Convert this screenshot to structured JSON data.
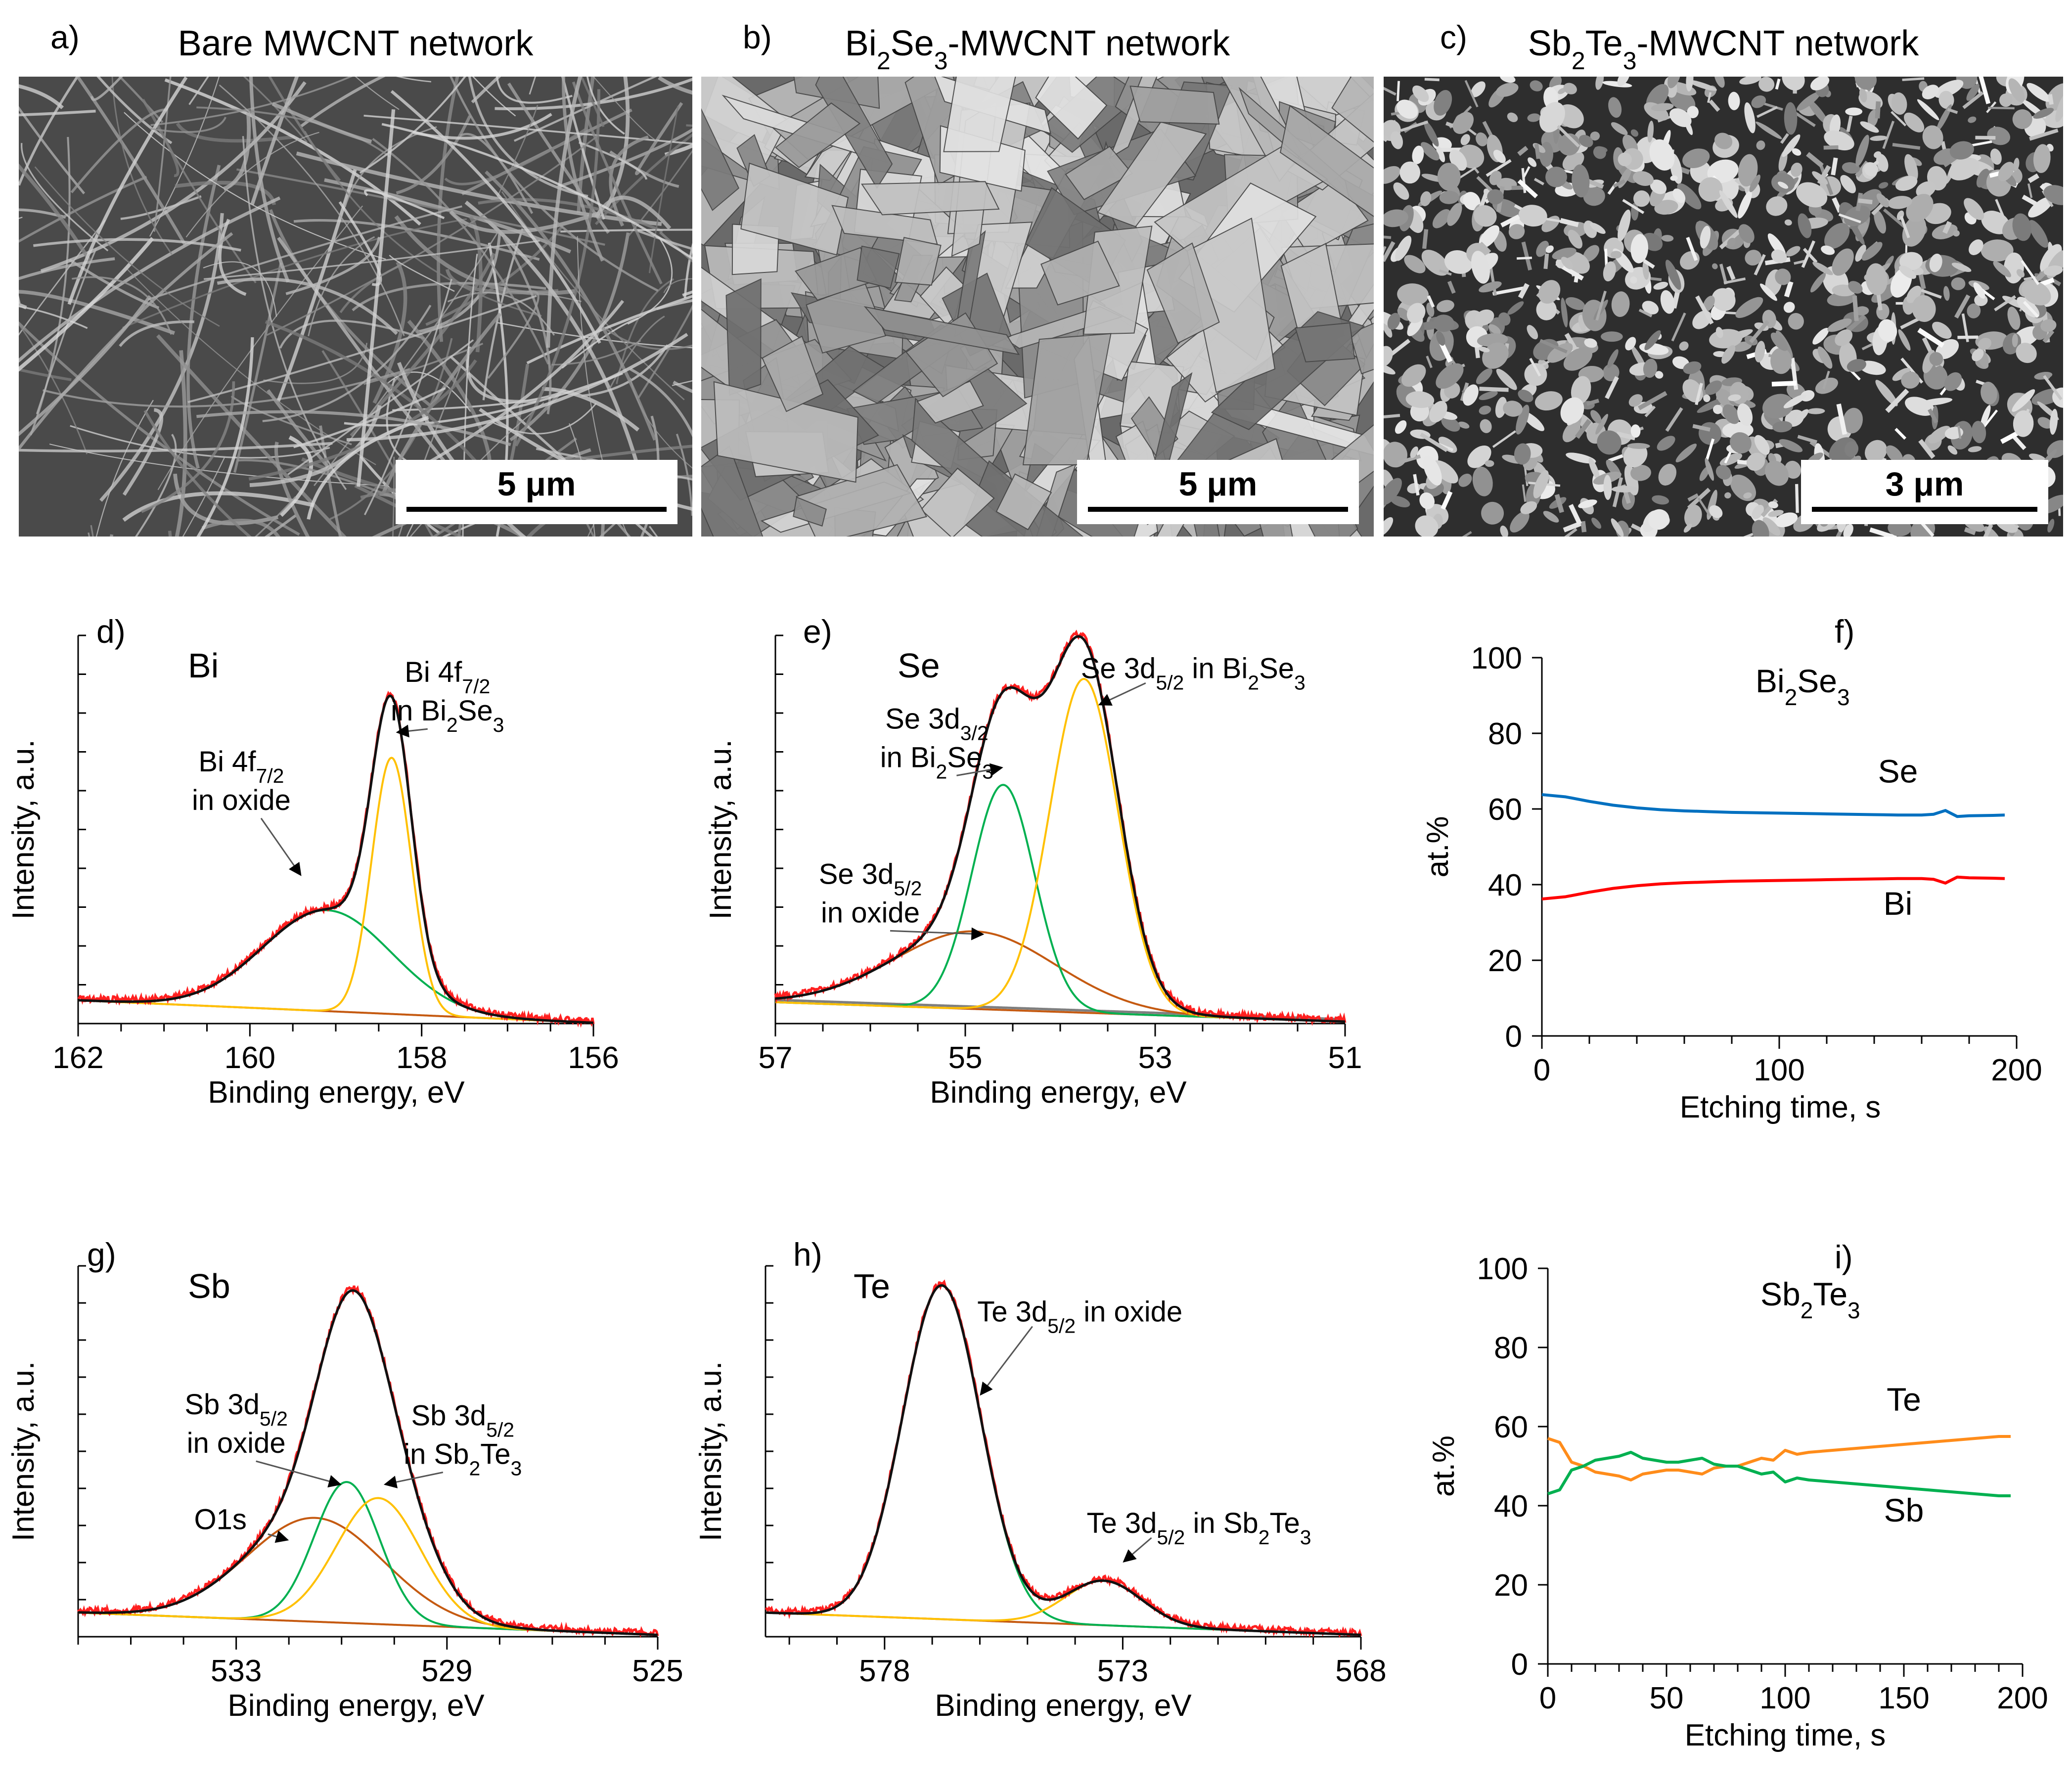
{
  "colors": {
    "measured": "#ff2020",
    "fit": "#111111",
    "green": "#00b050",
    "yellow": "#ffc000",
    "brown": "#c55a11",
    "gray": "#7f7f7f",
    "blue": "#0070c0",
    "red": "#ff0000",
    "orange": "#ff8c1a",
    "sem_bg": "#4a4a4a"
  },
  "sem": [
    {
      "letter": "a)",
      "title_pre": "Bare MWCNT network",
      "formula": [],
      "title_post": "",
      "scale": "5 μm",
      "texture": "fibers"
    },
    {
      "letter": "b)",
      "title_pre": "",
      "formula": [
        [
          "Bi",
          "2"
        ],
        [
          "Se",
          "3"
        ]
      ],
      "title_post": "-MWCNT network",
      "scale": "5 μm",
      "texture": "flakes"
    },
    {
      "letter": "c)",
      "title_pre": "",
      "formula": [
        [
          "Sb",
          "2"
        ],
        [
          "Te",
          "3"
        ]
      ],
      "title_post": "-MWCNT network",
      "scale": "3 μm",
      "texture": "grains"
    }
  ],
  "chart_data": [
    {
      "id": "d",
      "letter": "d)",
      "type": "line",
      "element": "Bi",
      "xlabel": "Binding energy, eV",
      "ylabel": "Intensity, a.u.",
      "xlim": [
        162,
        156
      ],
      "ylim": [
        0,
        100
      ],
      "xticks": [
        162,
        160,
        158,
        156
      ],
      "minor_step": 0.5,
      "yminor_step": 10,
      "background": [
        [
          162,
          6.0
        ],
        [
          156,
          0.2
        ]
      ],
      "components": [
        {
          "name": "Bi 4f7/2 in oxide",
          "color": "green",
          "center": 159.1,
          "sigma": 0.75,
          "amplitude": 26
        },
        {
          "name": "Bi 4f7/2 in Bi2Se3",
          "color": "yellow",
          "center": 158.35,
          "sigma": 0.23,
          "amplitude": 66
        }
      ],
      "annotations": [
        {
          "lines": [
            [
              [
                "Bi 4f",
                ""
              ],
              [
                "7/2",
                "sub"
              ]
            ],
            [
              [
                "in oxide",
                ""
              ]
            ]
          ],
          "label_x": 160.1,
          "label_y": 65,
          "arrow_to": [
            159.4,
            38
          ]
        },
        {
          "lines": [
            [
              [
                "Bi 4f",
                ""
              ],
              [
                "7/2",
                "sub"
              ]
            ],
            [
              [
                "in Bi",
                ""
              ],
              [
                "2",
                "sub"
              ],
              [
                "Se",
                ""
              ],
              [
                "3",
                "sub"
              ]
            ]
          ],
          "label_x": 157.7,
          "label_y": 88,
          "arrow_to": [
            158.3,
            75
          ]
        }
      ]
    },
    {
      "id": "e",
      "letter": "e)",
      "type": "line",
      "element": "Se",
      "xlabel": "Binding energy, eV",
      "ylabel": "Intensity, a.u.",
      "xlim": [
        57,
        51
      ],
      "ylim": [
        0,
        100
      ],
      "xticks": [
        57,
        55,
        53,
        51
      ],
      "minor_step": 0.5,
      "yminor_step": 10,
      "background": [
        [
          57,
          5.5
        ],
        [
          51,
          0.5
        ]
      ],
      "grey_line": true,
      "components": [
        {
          "name": "Se 3d5/2 in oxide",
          "color": "brown",
          "center": 54.9,
          "sigma": 0.85,
          "amplitude": 20
        },
        {
          "name": "Se 3d3/2 in Bi2Se3",
          "color": "green",
          "center": 54.6,
          "sigma": 0.33,
          "amplitude": 58
        },
        {
          "name": "Se 3d5/2 in Bi2Se3",
          "color": "yellow",
          "center": 53.75,
          "sigma": 0.36,
          "amplitude": 86
        }
      ],
      "annotations": [
        {
          "lines": [
            [
              [
                "Se 3d",
                ""
              ],
              [
                "5/2",
                "sub"
              ]
            ],
            [
              [
                "in oxide",
                ""
              ]
            ]
          ],
          "label_x": 56.0,
          "label_y": 36,
          "arrow_to": [
            54.8,
            23
          ]
        },
        {
          "lines": [
            [
              [
                "Se 3d",
                ""
              ],
              [
                "3/2",
                "sub"
              ]
            ],
            [
              [
                "in Bi",
                ""
              ],
              [
                "2",
                "sub"
              ],
              [
                "Se",
                ""
              ],
              [
                "3",
                "sub"
              ]
            ]
          ],
          "label_x": 55.3,
          "label_y": 76,
          "arrow_to": [
            54.6,
            66
          ]
        },
        {
          "lines": [
            [
              [
                "Se 3d",
                ""
              ],
              [
                "5/2",
                "sub"
              ],
              [
                " in Bi",
                ""
              ],
              [
                "2",
                "sub"
              ],
              [
                "Se",
                ""
              ],
              [
                "3",
                "sub"
              ]
            ]
          ],
          "label_x": 52.6,
          "label_y": 89,
          "arrow_to": [
            53.6,
            82
          ]
        }
      ]
    },
    {
      "id": "f",
      "letter": "f)",
      "type": "line",
      "compound": [
        [
          "Bi",
          "2"
        ],
        [
          "Se",
          "3"
        ]
      ],
      "xlabel": "Etching time, s",
      "ylabel": "at.%",
      "xlim": [
        0,
        200
      ],
      "ylim": [
        0,
        100
      ],
      "xticks": [
        0,
        100,
        200
      ],
      "yticks": [
        0,
        20,
        40,
        60,
        80,
        100
      ],
      "minor_step": 20,
      "series": [
        {
          "name": "Se",
          "color": "blue",
          "x": [
            0,
            10,
            20,
            30,
            40,
            50,
            60,
            70,
            80,
            90,
            100,
            110,
            120,
            130,
            140,
            150,
            160,
            165,
            170,
            175,
            180,
            190,
            195
          ],
          "y": [
            63.8,
            63.2,
            62.0,
            61.0,
            60.3,
            59.8,
            59.5,
            59.3,
            59.1,
            59.0,
            58.9,
            58.8,
            58.7,
            58.6,
            58.5,
            58.4,
            58.4,
            58.6,
            59.6,
            58.0,
            58.2,
            58.3,
            58.4
          ],
          "label_x": 150,
          "label_y": 67
        },
        {
          "name": "Bi",
          "color": "red",
          "x": [
            0,
            10,
            20,
            30,
            40,
            50,
            60,
            70,
            80,
            90,
            100,
            110,
            120,
            130,
            140,
            150,
            160,
            165,
            170,
            175,
            180,
            190,
            195
          ],
          "y": [
            36.2,
            36.8,
            38.0,
            39.0,
            39.7,
            40.2,
            40.5,
            40.7,
            40.9,
            41.0,
            41.1,
            41.2,
            41.3,
            41.4,
            41.5,
            41.6,
            41.6,
            41.4,
            40.4,
            42.0,
            41.8,
            41.7,
            41.6
          ],
          "label_x": 150,
          "label_y": 32
        }
      ]
    },
    {
      "id": "g",
      "letter": "g)",
      "type": "line",
      "element": "Sb",
      "xlabel": "Binding energy, eV",
      "ylabel": "Intensity, a.u.",
      "xlim": [
        536,
        525
      ],
      "ylim": [
        0,
        100
      ],
      "xticks": [
        533,
        529,
        525
      ],
      "minor_step": 1,
      "yminor_step": 10,
      "background": [
        [
          536,
          6.5
        ],
        [
          525,
          0.5
        ]
      ],
      "components": [
        {
          "name": "O1s",
          "color": "brown",
          "center": 531.5,
          "sigma": 1.3,
          "amplitude": 28
        },
        {
          "name": "Sb 3d5/2 in oxide",
          "color": "green",
          "center": 530.9,
          "sigma": 0.62,
          "amplitude": 38
        },
        {
          "name": "Sb 3d5/2 in Sb2Te3",
          "color": "yellow",
          "center": 530.3,
          "sigma": 0.8,
          "amplitude": 34
        }
      ],
      "annotations": [
        {
          "lines": [
            [
              [
                "O1s",
                ""
              ]
            ]
          ],
          "label_x": 533.3,
          "label_y": 29,
          "arrow_to": [
            532.0,
            26
          ]
        },
        {
          "lines": [
            [
              [
                "Sb 3d",
                ""
              ],
              [
                "5/2",
                "sub"
              ]
            ],
            [
              [
                "in oxide",
                ""
              ]
            ]
          ],
          "label_x": 533.0,
          "label_y": 60,
          "arrow_to": [
            531.0,
            41
          ]
        },
        {
          "lines": [
            [
              [
                "Sb 3d",
                ""
              ],
              [
                "5/2",
                "sub"
              ]
            ],
            [
              [
                "in Sb",
                ""
              ],
              [
                "2",
                "sub"
              ],
              [
                "Te",
                ""
              ],
              [
                "3",
                "sub"
              ]
            ]
          ],
          "label_x": 528.7,
          "label_y": 57,
          "arrow_to": [
            530.2,
            41
          ]
        }
      ]
    },
    {
      "id": "h",
      "letter": "h)",
      "type": "line",
      "element": "Te",
      "xlabel": "Binding energy, eV",
      "ylabel": "Intensity, a.u.",
      "xlim": [
        580.5,
        568
      ],
      "ylim": [
        0,
        100
      ],
      "xticks": [
        578,
        573,
        568
      ],
      "minor_step": 1,
      "yminor_step": 10,
      "background": [
        [
          580.5,
          6.5
        ],
        [
          568,
          0.5
        ]
      ],
      "components": [
        {
          "name": "Te 3d5/2 in oxide",
          "color": "green",
          "center": 576.8,
          "sigma": 0.82,
          "amplitude": 90
        },
        {
          "name": "Te 3d5/2 in Sb2Te3",
          "color": "yellow",
          "center": 573.4,
          "sigma": 0.8,
          "amplitude": 12
        }
      ],
      "annotations": [
        {
          "lines": [
            [
              [
                "Te 3d",
                ""
              ],
              [
                "5/2",
                "sub"
              ],
              [
                " in oxide",
                ""
              ]
            ]
          ],
          "label_x": 573.9,
          "label_y": 85,
          "arrow_to": [
            576.0,
            65
          ]
        },
        {
          "lines": [
            [
              [
                "Te 3d",
                ""
              ],
              [
                "5/2",
                "sub"
              ],
              [
                " in Sb",
                ""
              ],
              [
                "2",
                "sub"
              ],
              [
                "Te",
                ""
              ],
              [
                "3",
                "sub"
              ]
            ]
          ],
          "label_x": 571.4,
          "label_y": 28,
          "arrow_to": [
            573.0,
            20
          ]
        }
      ]
    },
    {
      "id": "i",
      "letter": "i)",
      "type": "line",
      "compound": [
        [
          "Sb",
          "2"
        ],
        [
          "Te",
          "3"
        ]
      ],
      "xlabel": "Etching time, s",
      "ylabel": "at.%",
      "xlim": [
        0,
        200
      ],
      "ylim": [
        0,
        100
      ],
      "xticks": [
        0,
        50,
        100,
        150,
        200
      ],
      "yticks": [
        0,
        20,
        40,
        60,
        80,
        100
      ],
      "minor_step": 10,
      "series": [
        {
          "name": "Te",
          "color": "orange",
          "x": [
            0,
            5,
            10,
            15,
            20,
            25,
            30,
            35,
            40,
            45,
            50,
            55,
            60,
            65,
            70,
            75,
            80,
            85,
            90,
            95,
            100,
            105,
            110,
            120,
            130,
            140,
            150,
            160,
            170,
            180,
            190,
            195
          ],
          "y": [
            57,
            56,
            51,
            50,
            48.5,
            48,
            47.5,
            46.5,
            48,
            48.5,
            49,
            49,
            48.5,
            48,
            49.5,
            50,
            50,
            51,
            52,
            51.5,
            54,
            53,
            53.5,
            54,
            54.5,
            55,
            55.5,
            56,
            56.5,
            57,
            57.5,
            57.5
          ],
          "label_x": 150,
          "label_y": 64
        },
        {
          "name": "Sb",
          "color": "green",
          "x": [
            0,
            5,
            10,
            15,
            20,
            25,
            30,
            35,
            40,
            45,
            50,
            55,
            60,
            65,
            70,
            75,
            80,
            85,
            90,
            95,
            100,
            105,
            110,
            120,
            130,
            140,
            150,
            160,
            170,
            180,
            190,
            195
          ],
          "y": [
            43,
            44,
            49,
            50,
            51.5,
            52,
            52.5,
            53.5,
            52,
            51.5,
            51,
            51,
            51.5,
            52,
            50.5,
            50,
            50,
            49,
            48,
            48.5,
            46,
            47,
            46.5,
            46,
            45.5,
            45,
            44.5,
            44,
            43.5,
            43,
            42.5,
            42.5
          ],
          "label_x": 150,
          "label_y": 36
        }
      ]
    }
  ]
}
